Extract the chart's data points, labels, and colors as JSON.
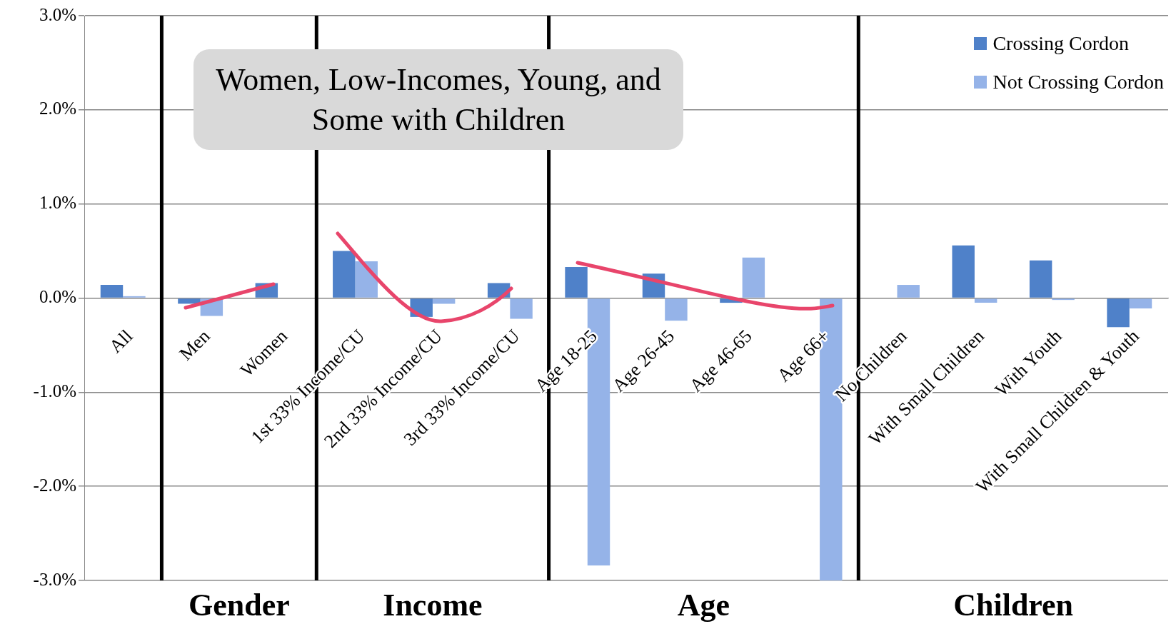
{
  "chart_data": {
    "type": "bar",
    "categories": [
      "All",
      "Men",
      "Women",
      "1st 33% Income/CU",
      "2nd 33% Income/CU",
      "3rd 33% Income/CU",
      "Age 18-25",
      "Age 26-45",
      "Age 46-65",
      "Age 66+",
      "No Children",
      "With Small Children",
      "With Youth",
      "With Small Children & Youth"
    ],
    "series": [
      {
        "name": "Crossing Cordon",
        "color": "#4f81c9",
        "values": [
          0.14,
          -0.06,
          0.16,
          0.5,
          -0.2,
          0.16,
          0.33,
          0.26,
          -0.05,
          0,
          0,
          0.56,
          0.4,
          -0.31
        ]
      },
      {
        "name": "Not Crossing Cordon",
        "color": "#95b3e8",
        "values": [
          0.02,
          -0.19,
          0,
          0.39,
          -0.06,
          -0.22,
          -2.84,
          -0.24,
          0.43,
          -3.0,
          0.14,
          -0.05,
          -0.02,
          -0.11
        ]
      }
    ],
    "ylim": [
      -3,
      3
    ],
    "yticks": [
      {
        "value": -3,
        "label": "-3.0%"
      },
      {
        "value": -2,
        "label": "-2.0%"
      },
      {
        "value": -1,
        "label": "-1.0%"
      },
      {
        "value": 0,
        "label": "0.0%"
      },
      {
        "value": 1,
        "label": "1.0%"
      },
      {
        "value": 2,
        "label": "2.0%"
      },
      {
        "value": 3,
        "label": "3.0%"
      }
    ],
    "grid": "y",
    "legend": "top right",
    "annotations": [
      "Women, Low-Incomes, Young, and Some with Children",
      "Gender",
      "Income",
      "Age",
      "Children"
    ]
  }
}
